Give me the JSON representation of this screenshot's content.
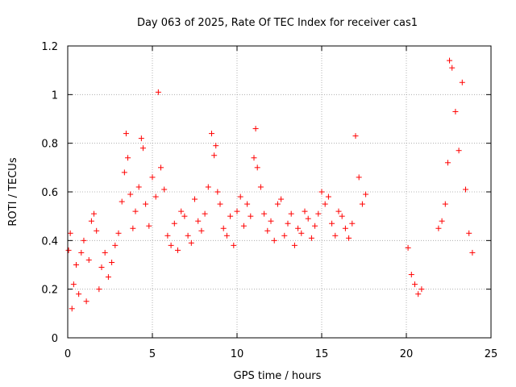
{
  "chart_data": {
    "type": "scatter",
    "title": "Day 063 of 2025, Rate Of TEC Index for receiver cas1",
    "xlabel": "GPS time / hours",
    "ylabel": "ROTI / TECUs",
    "xlim": [
      0,
      25
    ],
    "ylim": [
      0,
      1.2
    ],
    "xticks": [
      "0",
      "5",
      "10",
      "15",
      "20",
      "25"
    ],
    "yticks": [
      "0",
      "0.2",
      "0.4",
      "0.6",
      "0.8",
      "1",
      "1.2"
    ],
    "grid": true,
    "marker": "+",
    "color": "#ff0000",
    "series": [
      {
        "x": [
          0.05,
          0.15,
          0.25,
          0.35,
          0.5,
          0.65,
          0.8,
          0.95,
          1.1,
          1.25,
          1.4,
          1.55,
          1.7,
          1.85,
          2.0,
          2.2,
          2.4,
          2.6,
          2.8,
          3.0,
          3.2,
          3.35,
          3.45,
          3.55,
          3.7,
          3.85,
          4.0,
          4.2,
          4.35,
          4.45,
          4.6,
          4.8,
          5.0,
          5.2,
          5.35,
          5.5,
          5.7,
          5.9,
          6.1,
          6.3,
          6.5,
          6.7,
          6.9,
          7.1,
          7.3,
          7.5,
          7.7,
          7.9,
          8.1,
          8.3,
          8.5,
          8.65,
          8.75,
          8.85,
          9.0,
          9.2,
          9.4,
          9.6,
          9.8,
          10.0,
          10.2,
          10.4,
          10.6,
          10.8,
          11.0,
          11.1,
          11.2,
          11.4,
          11.6,
          11.8,
          12.0,
          12.2,
          12.4,
          12.6,
          12.8,
          13.0,
          13.2,
          13.4,
          13.6,
          13.8,
          14.0,
          14.2,
          14.4,
          14.6,
          14.8,
          15.0,
          15.2,
          15.4,
          15.6,
          15.8,
          16.0,
          16.2,
          16.4,
          16.6,
          16.8,
          17.0,
          17.2,
          17.4,
          17.6,
          20.1,
          20.3,
          20.5,
          20.7,
          20.9,
          21.9,
          22.1,
          22.3,
          22.45,
          22.55,
          22.7,
          22.9,
          23.1,
          23.3,
          23.5,
          23.7,
          23.9
        ],
        "y": [
          0.36,
          0.43,
          0.12,
          0.22,
          0.3,
          0.18,
          0.35,
          0.4,
          0.15,
          0.32,
          0.48,
          0.51,
          0.44,
          0.2,
          0.29,
          0.35,
          0.25,
          0.31,
          0.38,
          0.43,
          0.56,
          0.68,
          0.84,
          0.74,
          0.59,
          0.45,
          0.52,
          0.62,
          0.82,
          0.78,
          0.55,
          0.46,
          0.66,
          0.58,
          1.01,
          0.7,
          0.61,
          0.42,
          0.38,
          0.47,
          0.36,
          0.52,
          0.5,
          0.42,
          0.39,
          0.57,
          0.48,
          0.44,
          0.51,
          0.62,
          0.84,
          0.75,
          0.79,
          0.6,
          0.55,
          0.45,
          0.42,
          0.5,
          0.38,
          0.52,
          0.58,
          0.46,
          0.55,
          0.5,
          0.74,
          0.86,
          0.7,
          0.62,
          0.51,
          0.44,
          0.48,
          0.4,
          0.55,
          0.57,
          0.42,
          0.47,
          0.51,
          0.38,
          0.45,
          0.43,
          0.52,
          0.49,
          0.41,
          0.46,
          0.51,
          0.6,
          0.55,
          0.58,
          0.47,
          0.42,
          0.52,
          0.5,
          0.45,
          0.41,
          0.47,
          0.83,
          0.66,
          0.55,
          0.59,
          0.37,
          0.26,
          0.22,
          0.18,
          0.2,
          0.45,
          0.48,
          0.55,
          0.72,
          1.14,
          1.11,
          0.93,
          0.77,
          1.05,
          0.61,
          0.43,
          0.35
        ]
      }
    ]
  }
}
